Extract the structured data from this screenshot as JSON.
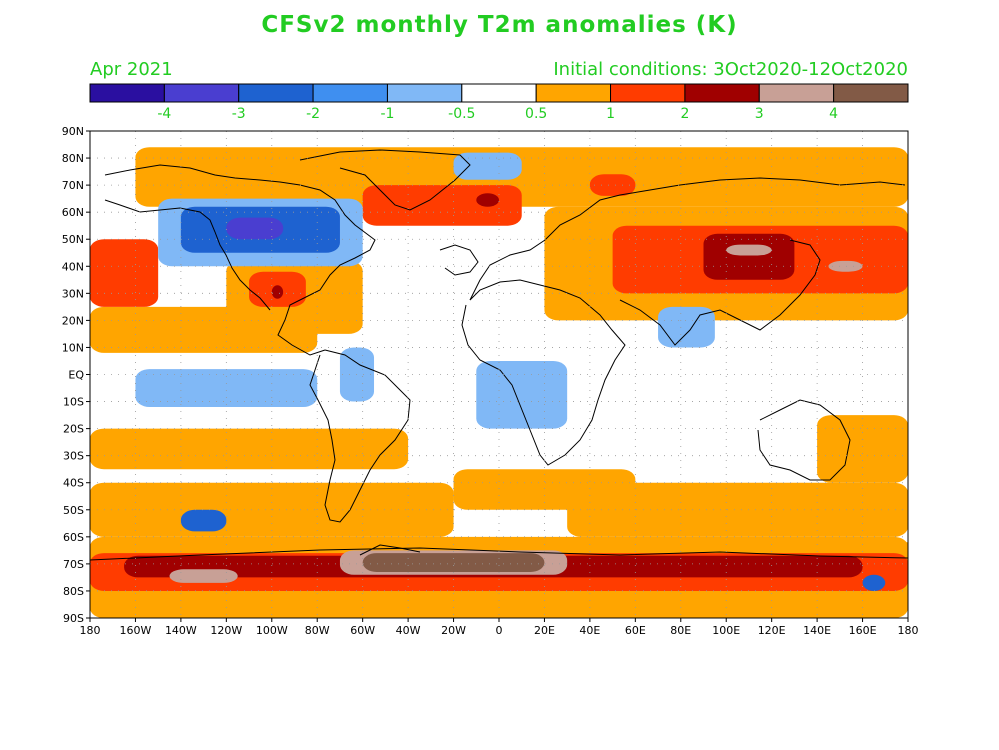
{
  "title": "CFSv2 monthly T2m anomalies (K)",
  "valid_month": "Apr 2021",
  "initial_conditions": "Initial conditions: 3Oct2020-12Oct2020",
  "colorbar": {
    "colors": [
      "#2a0fa0",
      "#4a3ed0",
      "#1e62d0",
      "#3f8ff0",
      "#80b8f6",
      "#ffffff",
      "#ffa500",
      "#ff3c00",
      "#a00000",
      "#c8a096",
      "#825a46"
    ],
    "labels": [
      "-4",
      "-3",
      "-2",
      "-1",
      "-0.5",
      "0.5",
      "1",
      "2",
      "3",
      "4"
    ],
    "label_color": "#22cc22"
  },
  "axes": {
    "lat_labels": [
      "90N",
      "80N",
      "70N",
      "60N",
      "50N",
      "40N",
      "30N",
      "20N",
      "10N",
      "EQ",
      "10S",
      "20S",
      "30S",
      "40S",
      "50S",
      "60S",
      "70S",
      "80S",
      "90S"
    ],
    "lon_labels": [
      "180",
      "160W",
      "140W",
      "120W",
      "100W",
      "80W",
      "60W",
      "40W",
      "20W",
      "0",
      "20E",
      "40E",
      "60E",
      "80E",
      "100E",
      "120E",
      "140E",
      "160E",
      "180"
    ]
  },
  "anomaly_regions": [
    {
      "lon": [
        160,
        220
      ],
      "lat": [
        -82,
        -62
      ],
      "level": 1
    },
    {
      "lon": [
        -180,
        180
      ],
      "lat": [
        -90,
        -60
      ],
      "level": 1
    },
    {
      "lon": [
        -180,
        180
      ],
      "lat": [
        -80,
        -66
      ],
      "level": 2
    },
    {
      "lon": [
        -165,
        160
      ],
      "lat": [
        -75,
        -67
      ],
      "level": 3
    },
    {
      "lon": [
        -70,
        30
      ],
      "lat": [
        -74,
        -65
      ],
      "level": 4
    },
    {
      "lon": [
        -60,
        20
      ],
      "lat": [
        -73,
        -66
      ],
      "level": 5
    },
    {
      "lon": [
        -145,
        -115
      ],
      "lat": [
        -77,
        -72
      ],
      "level": 4
    },
    {
      "lon": [
        -180,
        -40
      ],
      "lat": [
        -35,
        -20
      ],
      "level": 1
    },
    {
      "lon": [
        -180,
        -20
      ],
      "lat": [
        -60,
        -40
      ],
      "level": 1
    },
    {
      "lon": [
        30,
        180
      ],
      "lat": [
        -60,
        -40
      ],
      "level": 1
    },
    {
      "lon": [
        -20,
        60
      ],
      "lat": [
        -50,
        -35
      ],
      "level": 1
    },
    {
      "lon": [
        140,
        180
      ],
      "lat": [
        -40,
        -15
      ],
      "level": 1
    },
    {
      "lon": [
        -140,
        -120
      ],
      "lat": [
        -58,
        -50
      ],
      "level": -2
    },
    {
      "lon": [
        -180,
        -80
      ],
      "lat": [
        8,
        25
      ],
      "level": 1
    },
    {
      "lon": [
        -180,
        -150
      ],
      "lat": [
        25,
        50
      ],
      "level": 2
    },
    {
      "lon": [
        -120,
        -60
      ],
      "lat": [
        15,
        42
      ],
      "level": 1
    },
    {
      "lon": [
        -110,
        -85
      ],
      "lat": [
        25,
        38
      ],
      "level": 2
    },
    {
      "lon": [
        -100,
        -95
      ],
      "lat": [
        28,
        33
      ],
      "level": 3
    },
    {
      "lon": [
        -160,
        180
      ],
      "lat": [
        62,
        84
      ],
      "level": 1
    },
    {
      "lon": [
        20,
        180
      ],
      "lat": [
        20,
        62
      ],
      "level": 1
    },
    {
      "lon": [
        50,
        180
      ],
      "lat": [
        30,
        55
      ],
      "level": 2
    },
    {
      "lon": [
        90,
        130
      ],
      "lat": [
        35,
        52
      ],
      "level": 3
    },
    {
      "lon": [
        100,
        120
      ],
      "lat": [
        44,
        48
      ],
      "level": 4
    },
    {
      "lon": [
        145,
        160
      ],
      "lat": [
        38,
        42
      ],
      "level": 4
    },
    {
      "lon": [
        -60,
        10
      ],
      "lat": [
        55,
        70
      ],
      "level": 2
    },
    {
      "lon": [
        -10,
        0
      ],
      "lat": [
        62,
        67
      ],
      "level": 3
    },
    {
      "lon": [
        40,
        60
      ],
      "lat": [
        66,
        74
      ],
      "level": 2
    },
    {
      "lon": [
        -150,
        -60
      ],
      "lat": [
        40,
        65
      ],
      "level": -1
    },
    {
      "lon": [
        -140,
        -70
      ],
      "lat": [
        45,
        62
      ],
      "level": -2
    },
    {
      "lon": [
        -120,
        -95
      ],
      "lat": [
        50,
        58
      ],
      "level": -3
    },
    {
      "lon": [
        -160,
        -80
      ],
      "lat": [
        -12,
        2
      ],
      "level": -1
    },
    {
      "lon": [
        -70,
        -55
      ],
      "lat": [
        -10,
        10
      ],
      "level": -1
    },
    {
      "lon": [
        -10,
        30
      ],
      "lat": [
        -20,
        5
      ],
      "level": -1
    },
    {
      "lon": [
        70,
        95
      ],
      "lat": [
        10,
        25
      ],
      "level": -1
    },
    {
      "lon": [
        -20,
        10
      ],
      "lat": [
        72,
        82
      ],
      "level": -1
    },
    {
      "lon": [
        160,
        170
      ],
      "lat": [
        -80,
        -74
      ],
      "level": -2
    }
  ]
}
